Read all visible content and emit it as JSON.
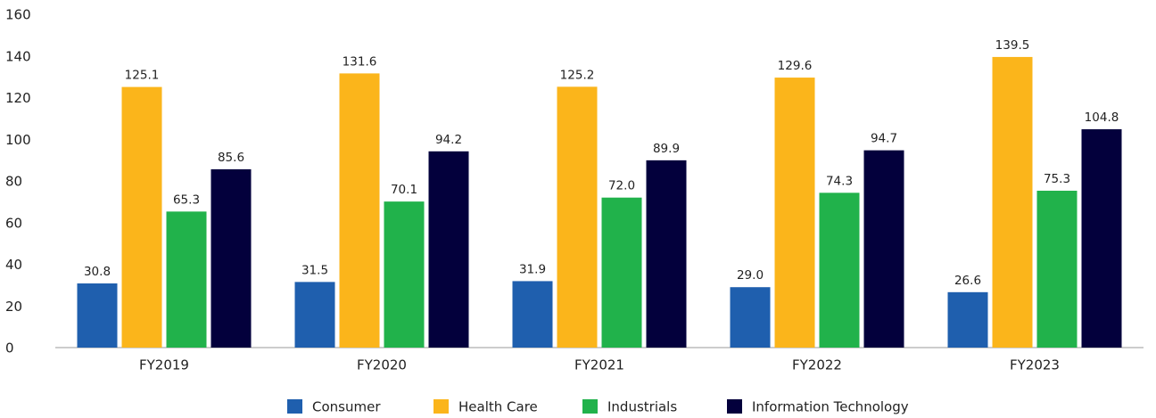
{
  "chart_data": {
    "type": "bar",
    "categories": [
      "FY2019",
      "FY2020",
      "FY2021",
      "FY2022",
      "FY2023"
    ],
    "series": [
      {
        "name": "Consumer",
        "color": "#1f5fae",
        "values": [
          30.8,
          31.5,
          31.9,
          29.0,
          26.6
        ],
        "value_labels": [
          "30.8",
          "31.5",
          "31.9",
          "29.0",
          "26.6"
        ]
      },
      {
        "name": "Health Care",
        "color": "#fbb51b",
        "values": [
          125.1,
          131.6,
          125.2,
          129.6,
          139.5
        ],
        "value_labels": [
          "125.1",
          "131.6",
          "125.2",
          "129.6",
          "139.5"
        ]
      },
      {
        "name": "Industrials",
        "color": "#21b24b",
        "values": [
          65.3,
          70.1,
          72.0,
          74.3,
          75.3
        ],
        "value_labels": [
          "65.3",
          "70.1",
          "72.0",
          "74.3",
          "75.3"
        ]
      },
      {
        "name": "Information Technology",
        "color": "#03003c",
        "values": [
          85.6,
          94.2,
          89.9,
          94.7,
          104.8
        ],
        "value_labels": [
          "85.6",
          "94.2",
          "89.9",
          "94.7",
          "104.8"
        ]
      }
    ],
    "ylim": [
      0,
      160
    ],
    "yticks": [
      0,
      20,
      40,
      60,
      80,
      100,
      120,
      140,
      160
    ],
    "grid": false,
    "legend": "bottom"
  }
}
